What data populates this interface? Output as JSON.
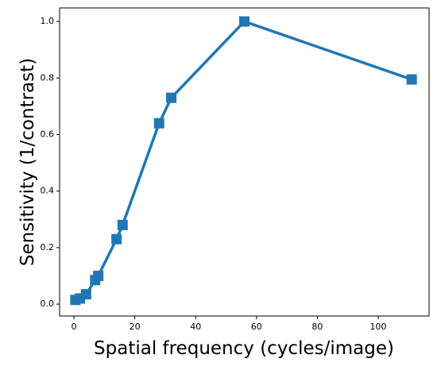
{
  "chart_data": {
    "type": "line",
    "x_label": "Spatial frequency (cycles/image)",
    "y_label": "Sensitivity (1/contrast)",
    "x": [
      0.5,
      2,
      4,
      7,
      8,
      14,
      16,
      28,
      32,
      56,
      111
    ],
    "series": [
      {
        "color": "#1f77b4",
        "values": [
          0.015,
          0.02,
          0.035,
          0.085,
          0.1,
          0.23,
          0.28,
          0.64,
          0.73,
          1.0,
          0.795
        ]
      }
    ],
    "xlim": [
      -4.7,
      116.7
    ],
    "ylim": [
      -0.042,
      1.048
    ],
    "xticks": [
      0,
      20,
      40,
      60,
      80,
      100
    ],
    "yticks": [
      {
        "value": 0,
        "label": "0.0"
      },
      {
        "value": 0.2,
        "label": "0.2"
      },
      {
        "value": 0.4,
        "label": "0.4"
      },
      {
        "value": 0.6,
        "label": "0.6"
      },
      {
        "value": 0.8,
        "label": "0.8"
      },
      {
        "value": 1,
        "label": "1.0"
      }
    ]
  }
}
